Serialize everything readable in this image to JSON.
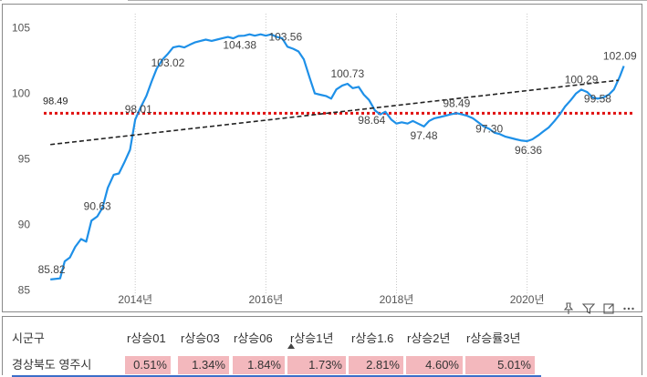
{
  "chart_data": {
    "type": "line",
    "x_range": [
      2012.6,
      2021.5
    ],
    "ylim": [
      84.7,
      105.8
    ],
    "yticks": [
      85,
      90,
      95,
      100,
      105
    ],
    "xticks": [
      {
        "x": 2014,
        "label": "2014년"
      },
      {
        "x": 2016,
        "label": "2016년"
      },
      {
        "x": 2018,
        "label": "2018년"
      },
      {
        "x": 2020,
        "label": "2020년"
      }
    ],
    "grid": "vertical-dotted",
    "series_color": "#1e90e8",
    "reference_line": {
      "value": 98.49,
      "label": "98.49",
      "color": "#e01010",
      "style": "dotted"
    },
    "trend_line": {
      "start": [
        2012.7,
        96.1
      ],
      "end": [
        2021.4,
        101.0
      ],
      "color": "#222222",
      "style": "dashed"
    },
    "series": [
      {
        "x": 2012.7,
        "y": 85.82
      },
      {
        "x": 2012.85,
        "y": 85.9
      },
      {
        "x": 2012.92,
        "y": 87.2
      },
      {
        "x": 2013.0,
        "y": 87.5
      },
      {
        "x": 2013.08,
        "y": 88.3
      },
      {
        "x": 2013.17,
        "y": 88.9
      },
      {
        "x": 2013.25,
        "y": 88.7
      },
      {
        "x": 2013.33,
        "y": 90.3
      },
      {
        "x": 2013.42,
        "y": 90.63
      },
      {
        "x": 2013.5,
        "y": 91.3
      },
      {
        "x": 2013.58,
        "y": 92.8
      },
      {
        "x": 2013.67,
        "y": 93.8
      },
      {
        "x": 2013.75,
        "y": 93.9
      },
      {
        "x": 2013.83,
        "y": 94.7
      },
      {
        "x": 2013.92,
        "y": 95.7
      },
      {
        "x": 2014.0,
        "y": 98.01
      },
      {
        "x": 2014.08,
        "y": 98.9
      },
      {
        "x": 2014.17,
        "y": 99.8
      },
      {
        "x": 2014.25,
        "y": 100.9
      },
      {
        "x": 2014.33,
        "y": 101.9
      },
      {
        "x": 2014.42,
        "y": 102.6
      },
      {
        "x": 2014.5,
        "y": 103.02
      },
      {
        "x": 2014.58,
        "y": 103.5
      },
      {
        "x": 2014.67,
        "y": 103.6
      },
      {
        "x": 2014.75,
        "y": 103.5
      },
      {
        "x": 2014.83,
        "y": 103.7
      },
      {
        "x": 2014.92,
        "y": 103.9
      },
      {
        "x": 2015.0,
        "y": 104.0
      },
      {
        "x": 2015.08,
        "y": 104.1
      },
      {
        "x": 2015.17,
        "y": 104.0
      },
      {
        "x": 2015.25,
        "y": 104.1
      },
      {
        "x": 2015.33,
        "y": 104.2
      },
      {
        "x": 2015.42,
        "y": 104.3
      },
      {
        "x": 2015.5,
        "y": 104.2
      },
      {
        "x": 2015.58,
        "y": 104.38
      },
      {
        "x": 2015.67,
        "y": 104.4
      },
      {
        "x": 2015.75,
        "y": 104.5
      },
      {
        "x": 2015.83,
        "y": 104.4
      },
      {
        "x": 2015.92,
        "y": 104.5
      },
      {
        "x": 2016.0,
        "y": 104.4
      },
      {
        "x": 2016.08,
        "y": 104.5
      },
      {
        "x": 2016.17,
        "y": 104.3
      },
      {
        "x": 2016.25,
        "y": 104.2
      },
      {
        "x": 2016.33,
        "y": 103.56
      },
      {
        "x": 2016.42,
        "y": 103.4
      },
      {
        "x": 2016.5,
        "y": 103.2
      },
      {
        "x": 2016.58,
        "y": 102.6
      },
      {
        "x": 2016.67,
        "y": 101.2
      },
      {
        "x": 2016.75,
        "y": 100.0
      },
      {
        "x": 2016.83,
        "y": 99.9
      },
      {
        "x": 2016.92,
        "y": 99.8
      },
      {
        "x": 2017.0,
        "y": 99.6
      },
      {
        "x": 2017.08,
        "y": 100.3
      },
      {
        "x": 2017.17,
        "y": 100.6
      },
      {
        "x": 2017.25,
        "y": 100.73
      },
      {
        "x": 2017.33,
        "y": 100.4
      },
      {
        "x": 2017.42,
        "y": 100.5
      },
      {
        "x": 2017.5,
        "y": 99.9
      },
      {
        "x": 2017.58,
        "y": 99.5
      },
      {
        "x": 2017.67,
        "y": 98.7
      },
      {
        "x": 2017.75,
        "y": 98.4
      },
      {
        "x": 2017.83,
        "y": 98.6
      },
      {
        "x": 2017.92,
        "y": 98.0
      },
      {
        "x": 2018.0,
        "y": 97.7
      },
      {
        "x": 2018.08,
        "y": 97.8
      },
      {
        "x": 2018.17,
        "y": 97.7
      },
      {
        "x": 2018.25,
        "y": 97.9
      },
      {
        "x": 2018.33,
        "y": 97.7
      },
      {
        "x": 2018.42,
        "y": 97.48
      },
      {
        "x": 2018.5,
        "y": 97.9
      },
      {
        "x": 2018.58,
        "y": 98.1
      },
      {
        "x": 2018.67,
        "y": 98.2
      },
      {
        "x": 2018.75,
        "y": 98.3
      },
      {
        "x": 2018.83,
        "y": 98.4
      },
      {
        "x": 2018.92,
        "y": 98.49
      },
      {
        "x": 2019.0,
        "y": 98.4
      },
      {
        "x": 2019.08,
        "y": 98.3
      },
      {
        "x": 2019.17,
        "y": 98.1
      },
      {
        "x": 2019.25,
        "y": 97.8
      },
      {
        "x": 2019.33,
        "y": 97.5
      },
      {
        "x": 2019.42,
        "y": 97.3
      },
      {
        "x": 2019.5,
        "y": 97.0
      },
      {
        "x": 2019.58,
        "y": 96.9
      },
      {
        "x": 2019.67,
        "y": 96.7
      },
      {
        "x": 2019.75,
        "y": 96.6
      },
      {
        "x": 2019.83,
        "y": 96.5
      },
      {
        "x": 2019.92,
        "y": 96.4
      },
      {
        "x": 2020.0,
        "y": 96.36
      },
      {
        "x": 2020.08,
        "y": 96.5
      },
      {
        "x": 2020.17,
        "y": 96.8
      },
      {
        "x": 2020.25,
        "y": 97.1
      },
      {
        "x": 2020.33,
        "y": 97.4
      },
      {
        "x": 2020.42,
        "y": 97.9
      },
      {
        "x": 2020.5,
        "y": 98.4
      },
      {
        "x": 2020.58,
        "y": 99.0
      },
      {
        "x": 2020.67,
        "y": 99.5
      },
      {
        "x": 2020.75,
        "y": 100.0
      },
      {
        "x": 2020.83,
        "y": 100.29
      },
      {
        "x": 2020.92,
        "y": 100.1
      },
      {
        "x": 2021.0,
        "y": 99.7
      },
      {
        "x": 2021.08,
        "y": 99.6
      },
      {
        "x": 2021.17,
        "y": 99.7
      },
      {
        "x": 2021.25,
        "y": 99.9
      },
      {
        "x": 2021.33,
        "y": 100.3
      },
      {
        "x": 2021.42,
        "y": 101.3
      },
      {
        "x": 2021.48,
        "y": 102.09
      }
    ],
    "data_labels": [
      {
        "x": 2012.72,
        "y": 85.82,
        "text": "85.82",
        "pos": "above"
      },
      {
        "x": 2013.42,
        "y": 90.63,
        "text": "90.63",
        "pos": "above"
      },
      {
        "x": 2014.05,
        "y": 98.01,
        "text": "98.01",
        "pos": "above"
      },
      {
        "x": 2014.5,
        "y": 103.02,
        "text": "103.02",
        "pos": "below"
      },
      {
        "x": 2015.6,
        "y": 104.38,
        "text": "104.38",
        "pos": "below"
      },
      {
        "x": 2016.3,
        "y": 103.56,
        "text": "103.56",
        "pos": "above"
      },
      {
        "x": 2017.25,
        "y": 100.73,
        "text": "100.73",
        "pos": "above"
      },
      {
        "x": 2017.62,
        "y": 98.64,
        "text": "98.64",
        "pos": "below"
      },
      {
        "x": 2018.42,
        "y": 97.48,
        "text": "97.48",
        "pos": "below"
      },
      {
        "x": 2018.92,
        "y": 98.49,
        "text": "98.49",
        "pos": "above"
      },
      {
        "x": 2019.42,
        "y": 97.3,
        "text": "97.30",
        "pos": "inline"
      },
      {
        "x": 2020.02,
        "y": 96.36,
        "text": "96.36",
        "pos": "below"
      },
      {
        "x": 2020.83,
        "y": 100.29,
        "text": "100.29",
        "pos": "above"
      },
      {
        "x": 2021.08,
        "y": 99.58,
        "text": "99.58",
        "pos": "inline"
      },
      {
        "x": 2021.42,
        "y": 102.09,
        "text": "102.09",
        "pos": "above"
      }
    ]
  },
  "table": {
    "headers": [
      "시군구",
      "r상승01",
      "r상승03",
      "r상승06",
      "r상승1년",
      "r상승1.6",
      "r상승2년",
      "r상승률3년"
    ],
    "row": [
      "경상북도 영주시",
      "0.51%",
      "1.34%",
      "1.84%",
      "1.73%",
      "2.81%",
      "4.60%",
      "5.01%"
    ]
  },
  "toolbar": {
    "pin_icon": "pin-icon",
    "filter_icon": "filter-icon",
    "focus_icon": "focus-mode-icon",
    "more_icon": "more-options-icon"
  }
}
